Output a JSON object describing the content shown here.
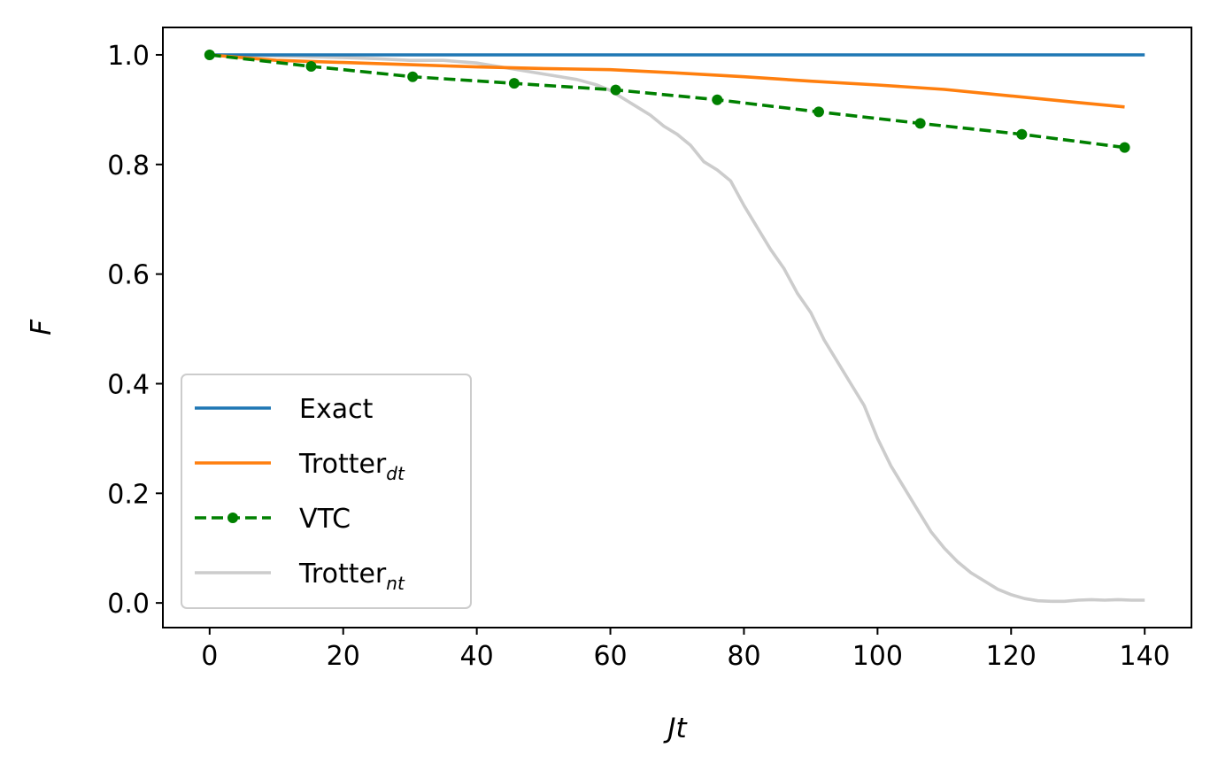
{
  "chart_data": {
    "type": "line",
    "xlabel": "Jt",
    "ylabel": "F",
    "xlim": [
      -7,
      147
    ],
    "ylim": [
      -0.045,
      1.05
    ],
    "x_ticks": [
      "0",
      "20",
      "40",
      "60",
      "80",
      "100",
      "120",
      "140"
    ],
    "y_ticks": [
      "0.0",
      "0.2",
      "0.4",
      "0.6",
      "0.8",
      "1.0"
    ],
    "grid": false,
    "legend_position": "lower-left",
    "series": [
      {
        "name": "Exact",
        "name_sub": "",
        "color": "#1f77b4",
        "style": "solid",
        "x": [
          0,
          140
        ],
        "y": [
          1.0,
          1.0
        ]
      },
      {
        "name": "Trotter",
        "name_sub": "dt",
        "color": "#ff7f0e",
        "style": "solid",
        "x": [
          0,
          10,
          20,
          30,
          40,
          50,
          60,
          70,
          80,
          90,
          100,
          110,
          120,
          130,
          137
        ],
        "y": [
          1.0,
          0.99,
          0.986,
          0.982,
          0.978,
          0.975,
          0.973,
          0.967,
          0.96,
          0.952,
          0.945,
          0.937,
          0.925,
          0.913,
          0.905
        ]
      },
      {
        "name": "VTC",
        "name_sub": "",
        "color": "#008000",
        "style": "dashed-dot",
        "x": [
          0,
          15.2,
          30.4,
          45.6,
          60.8,
          76.0,
          91.2,
          106.4,
          121.6,
          137
        ],
        "y": [
          1.0,
          0.979,
          0.96,
          0.948,
          0.936,
          0.918,
          0.896,
          0.875,
          0.855,
          0.831
        ]
      },
      {
        "name": "Trotter",
        "name_sub": "nt",
        "color": "#cccccc",
        "style": "solid",
        "x": [
          0,
          10,
          20,
          25,
          30,
          35,
          40,
          45,
          50,
          55,
          58,
          60,
          62,
          64,
          66,
          68,
          70,
          72,
          74,
          76,
          78,
          80,
          82,
          84,
          86,
          88,
          90,
          92,
          94,
          96,
          98,
          100,
          102,
          104,
          106,
          108,
          110,
          112,
          114,
          116,
          118,
          120,
          122,
          124,
          126,
          128,
          130,
          132,
          134,
          136,
          138,
          140
        ],
        "y": [
          1.0,
          0.998,
          0.995,
          0.993,
          0.99,
          0.99,
          0.985,
          0.975,
          0.965,
          0.955,
          0.945,
          0.935,
          0.92,
          0.905,
          0.89,
          0.87,
          0.855,
          0.835,
          0.805,
          0.79,
          0.77,
          0.725,
          0.685,
          0.645,
          0.61,
          0.565,
          0.53,
          0.48,
          0.44,
          0.4,
          0.36,
          0.3,
          0.25,
          0.21,
          0.17,
          0.13,
          0.1,
          0.075,
          0.055,
          0.04,
          0.025,
          0.015,
          0.008,
          0.004,
          0.003,
          0.003,
          0.005,
          0.006,
          0.005,
          0.006,
          0.005,
          0.005
        ]
      }
    ]
  }
}
